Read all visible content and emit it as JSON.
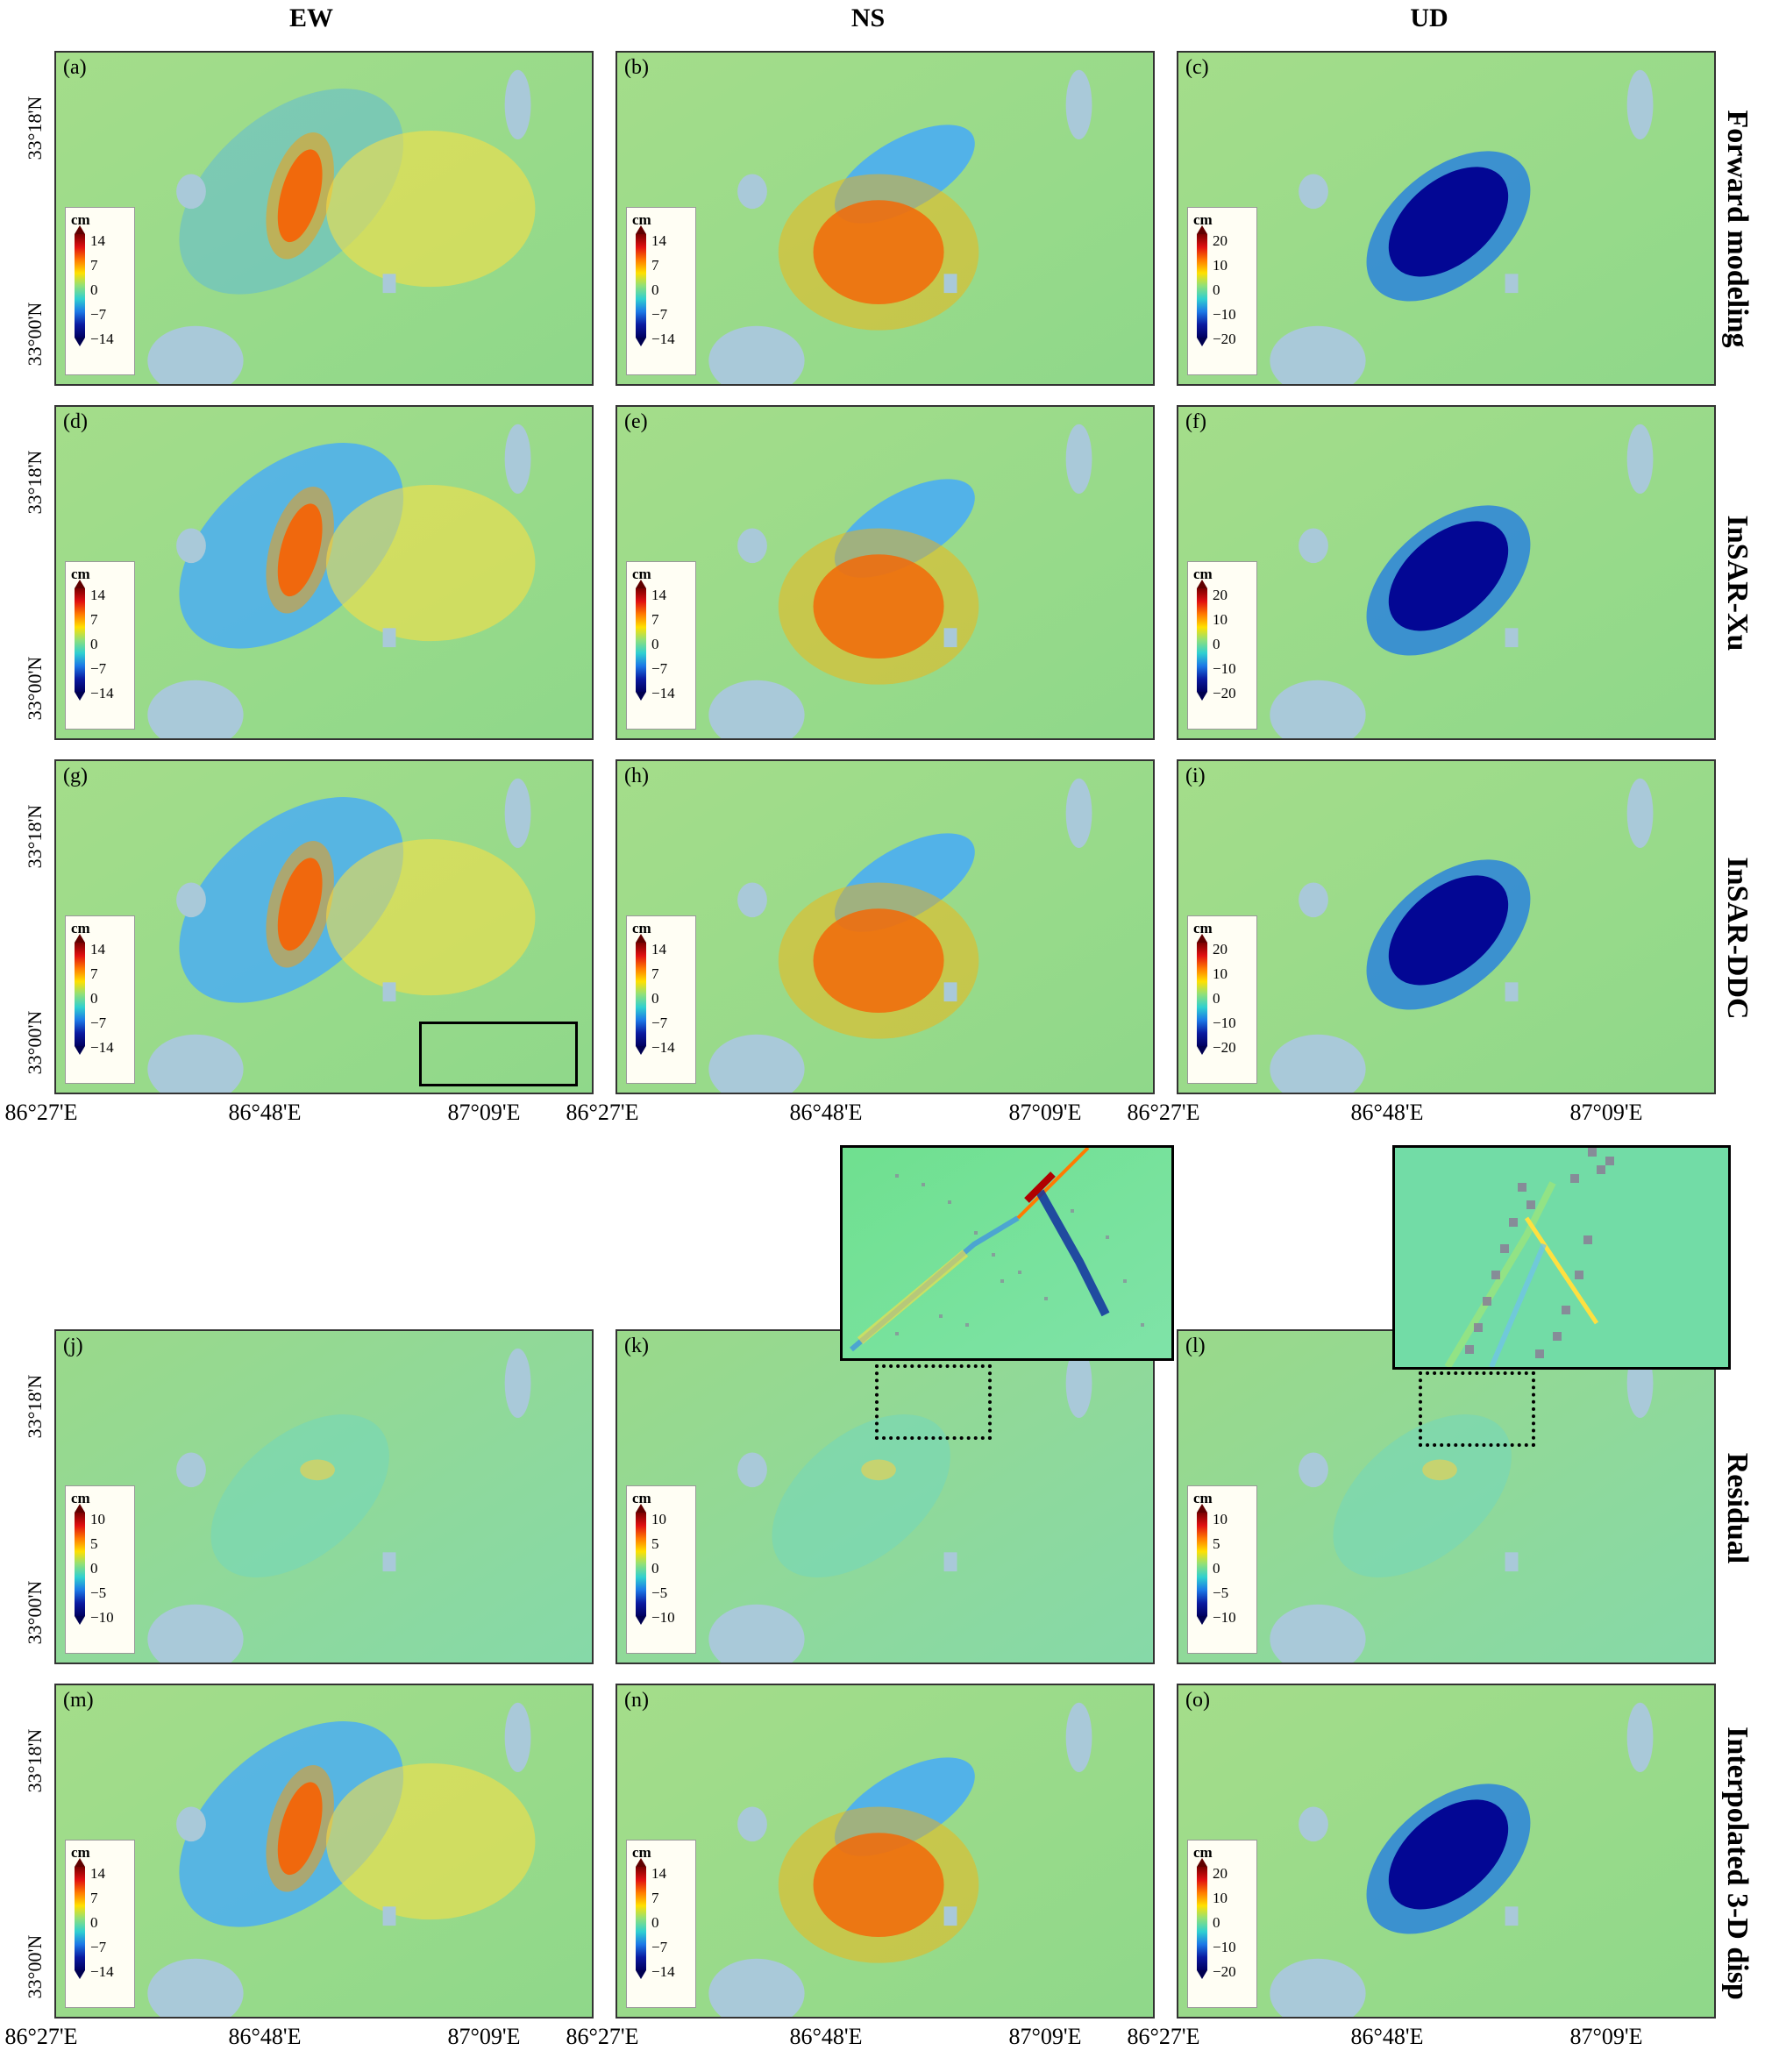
{
  "columns": [
    "EW",
    "NS",
    "UD"
  ],
  "rows": [
    "Forward modeling",
    "InSAR-Xu",
    "InSAR-DDC",
    "Residual",
    "Interpolated 3-D disp"
  ],
  "panels": {
    "a": "(a)",
    "b": "(b)",
    "c": "(c)",
    "d": "(d)",
    "e": "(e)",
    "f": "(f)",
    "g": "(g)",
    "h": "(h)",
    "i": "(i)",
    "j": "(j)",
    "k": "(k)",
    "l": "(l)",
    "m": "(m)",
    "n": "(n)",
    "o": "(o)"
  },
  "legend": {
    "unit": "cm",
    "horizontal_ticks": [
      "14",
      "7",
      "0",
      "−7",
      "−14"
    ],
    "vertical_ticks": [
      "20",
      "10",
      "0",
      "−10",
      "−20"
    ],
    "residual_ticks": [
      "10",
      "5",
      "0",
      "−5",
      "−10"
    ],
    "colors": [
      "#7a0000",
      "#e01010",
      "#ff7a00",
      "#ffe000",
      "#8fe07a",
      "#30d0d0",
      "#1c78e6",
      "#0a1aa0",
      "#000060"
    ]
  },
  "axes": {
    "lat_labels": [
      "33°18'N",
      "33°00'N"
    ],
    "lon_labels": [
      "86°27'E",
      "86°48'E",
      "87°09'E"
    ]
  },
  "colors": {
    "background_land": "#8fd88a",
    "lake": "#a9c9d9"
  }
}
